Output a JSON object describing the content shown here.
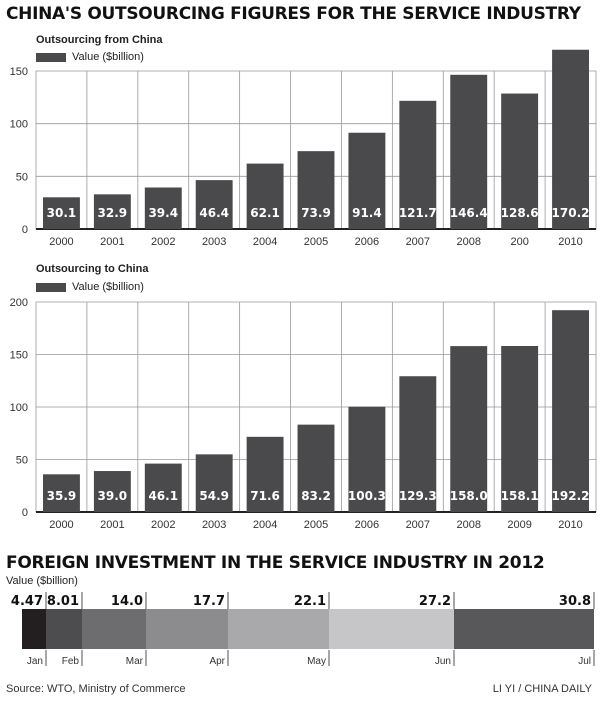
{
  "title": "CHINA'S OUTSOURCING FIGURES FOR THE SERVICE INDUSTRY",
  "chart_data": [
    {
      "type": "bar",
      "title": "Outsourcing from China",
      "legend": "Value ($billion)",
      "categories": [
        "2000",
        "2001",
        "2002",
        "2003",
        "2004",
        "2005",
        "2006",
        "2007",
        "2008",
        "200",
        "2010"
      ],
      "values": [
        30.1,
        32.9,
        39.4,
        46.4,
        62.1,
        73.9,
        91.4,
        121.7,
        146.4,
        128.6,
        170.2
      ],
      "yticks": [
        0,
        50,
        100,
        150
      ],
      "ylim": [
        0,
        150
      ],
      "grid": true,
      "bar_color": "#4a4a4c"
    },
    {
      "type": "bar",
      "title": "Outsourcing to China",
      "legend": "Value ($billion)",
      "categories": [
        "2000",
        "2001",
        "2002",
        "2003",
        "2004",
        "2005",
        "2006",
        "2007",
        "2008",
        "2009",
        "2010"
      ],
      "values": [
        35.9,
        39.0,
        46.1,
        54.9,
        71.6,
        83.2,
        100.3,
        129.3,
        158.0,
        158.1,
        192.2
      ],
      "yticks": [
        0,
        50,
        100,
        150,
        200
      ],
      "ylim": [
        0,
        200
      ],
      "grid": true,
      "bar_color": "#4a4a4c"
    },
    {
      "type": "bar",
      "orientation": "stacked-horizontal",
      "title": "FOREIGN INVESTMENT IN THE SERVICE INDUSTRY IN 2012",
      "ylabel": "Value ($billion)",
      "categories": [
        "Jan",
        "Feb",
        "Mar",
        "Apr",
        "May",
        "Jun",
        "Jul"
      ],
      "values": [
        4.47,
        8.01,
        14.0,
        17.7,
        22.1,
        27.2,
        30.8
      ],
      "labels": [
        "4.47",
        "8.01",
        "14.0",
        "17.7",
        "22.1",
        "27.2",
        "30.8"
      ],
      "colors": [
        "#231f20",
        "#4d4d4f",
        "#6d6d6f",
        "#8c8c8e",
        "#a9a9ab",
        "#c6c6c8",
        "#58585a"
      ]
    }
  ],
  "source": "Source: WTO, Ministry of Commerce",
  "credit": "LI YI / CHINA DAILY"
}
